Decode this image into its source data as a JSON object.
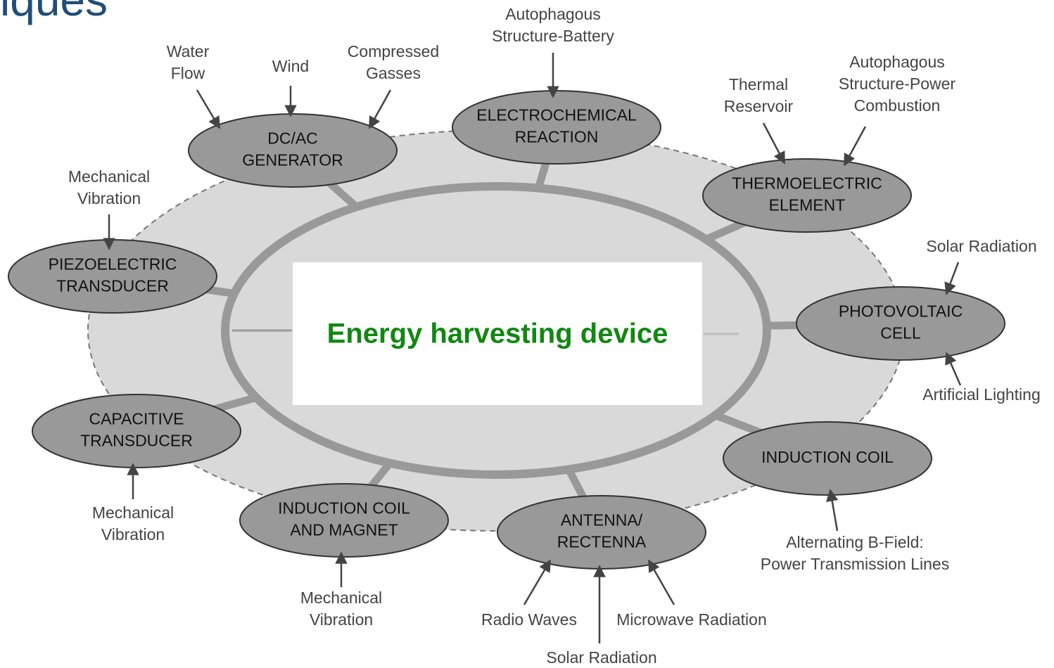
{
  "title": "iques",
  "center": {
    "label": "Energy harvesting device"
  },
  "nodes": [
    {
      "label": [
        "DC/AC",
        "GENERATOR"
      ],
      "sources": [
        {
          "label": [
            "Water",
            "Flow"
          ]
        },
        {
          "label": [
            "Wind"
          ]
        },
        {
          "label": [
            "Compressed",
            "Gasses"
          ]
        }
      ]
    },
    {
      "label": [
        "ELECTROCHEMICAL",
        "REACTION"
      ],
      "sources": [
        {
          "label": [
            "Autophagous",
            "Structure-Battery"
          ]
        }
      ]
    },
    {
      "label": [
        "THERMOELECTRIC",
        "ELEMENT"
      ],
      "sources": [
        {
          "label": [
            "Thermal",
            "Reservoir"
          ]
        },
        {
          "label": [
            "Autophagous",
            "Structure-Power",
            "Combustion"
          ]
        }
      ]
    },
    {
      "label": [
        "PIEZOELECTRIC",
        "TRANSDUCER"
      ],
      "sources": [
        {
          "label": [
            "Mechanical",
            "Vibration"
          ]
        }
      ]
    },
    {
      "label": [
        "PHOTOVOLTAIC",
        "CELL"
      ],
      "sources": [
        {
          "label": [
            "Solar Radiation"
          ]
        },
        {
          "label": [
            "Artificial Lighting"
          ]
        }
      ]
    },
    {
      "label": [
        "CAPACITIVE",
        "TRANSDUCER"
      ],
      "sources": [
        {
          "label": [
            "Mechanical",
            "Vibration"
          ]
        }
      ]
    },
    {
      "label": [
        "INDUCTION COIL"
      ],
      "sources": [
        {
          "label": [
            "Alternating B-Field:",
            "Power Transmission Lines"
          ]
        }
      ]
    },
    {
      "label": [
        "INDUCTION COIL",
        "AND MAGNET"
      ],
      "sources": [
        {
          "label": [
            "Mechanical",
            "Vibration"
          ]
        }
      ]
    },
    {
      "label": [
        "ANTENNA/",
        "RECTENNA"
      ],
      "sources": [
        {
          "label": [
            "Radio Waves"
          ]
        },
        {
          "label": [
            "Solar Radiation"
          ]
        },
        {
          "label": [
            "Microwave Radiation"
          ]
        }
      ]
    }
  ]
}
